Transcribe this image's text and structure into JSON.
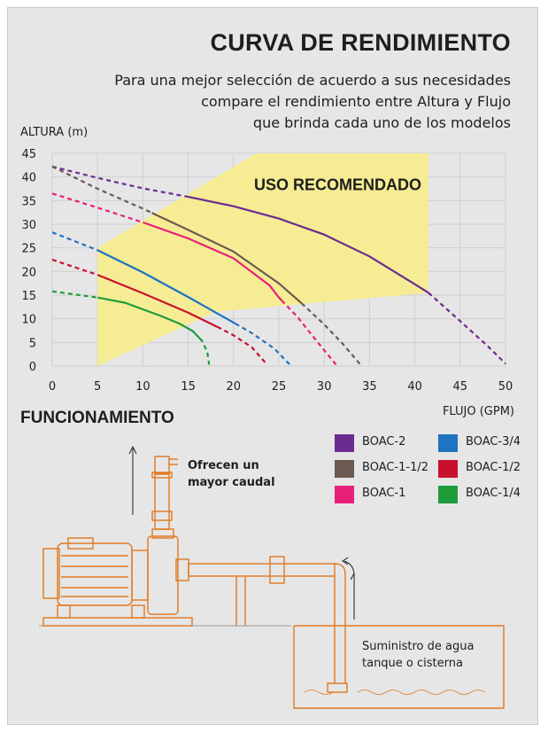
{
  "header": {
    "title": "CURVA DE RENDIMIENTO",
    "subtitle_lines": [
      "Para una mejor selección de acuerdo a sus necesidades",
      "compare el rendimiento entre Altura y Flujo",
      "que brinda cada uno de los modelos"
    ]
  },
  "chart_data": {
    "type": "line",
    "ylabel": "ALTURA (m)",
    "xlabel": "FLUJO (GPM)",
    "xlim": [
      0,
      50
    ],
    "ylim": [
      0,
      45
    ],
    "x_ticks": [
      0,
      5,
      10,
      15,
      20,
      25,
      30,
      35,
      40,
      45,
      50
    ],
    "y_ticks": [
      0,
      5,
      10,
      15,
      20,
      25,
      30,
      35,
      40,
      45
    ],
    "grid": true,
    "recommended_zone": {
      "label": "USO RECOMENDADO",
      "color": "#f7ec8f",
      "polygon": [
        [
          5,
          0
        ],
        [
          5,
          25
        ],
        [
          22.5,
          45
        ],
        [
          41.5,
          45
        ],
        [
          41.5,
          15.5
        ],
        [
          18,
          11.5
        ]
      ]
    },
    "series": [
      {
        "name": "BOAC-2",
        "color": "#6a2c91",
        "points": [
          [
            0,
            42.2
          ],
          [
            5,
            39.8
          ],
          [
            10,
            37.6
          ],
          [
            15,
            35.8
          ],
          [
            20,
            33.8
          ],
          [
            25,
            31.2
          ],
          [
            30,
            27.8
          ],
          [
            35,
            23.2
          ],
          [
            40,
            17.3
          ],
          [
            41.5,
            15.5
          ],
          [
            45,
            9.5
          ],
          [
            48,
            4.3
          ],
          [
            50,
            0.5
          ]
        ],
        "solid_range": [
          15,
          41.5
        ]
      },
      {
        "name": "BOAC-1-1/2",
        "color": "#6b5a50",
        "points": [
          [
            0,
            42.2
          ],
          [
            5,
            37.5
          ],
          [
            10,
            33.3
          ],
          [
            15,
            28.8
          ],
          [
            20,
            24.2
          ],
          [
            25,
            17.5
          ],
          [
            27.5,
            13.3
          ],
          [
            30,
            8.8
          ],
          [
            32,
            4.8
          ],
          [
            34,
            0.3
          ]
        ],
        "solid_range": [
          11,
          27.5
        ]
      },
      {
        "name": "BOAC-1",
        "color": "#e8207a",
        "points": [
          [
            0,
            36.5
          ],
          [
            5,
            33.5
          ],
          [
            10,
            30.4
          ],
          [
            15,
            27.0
          ],
          [
            20,
            22.8
          ],
          [
            24,
            17.0
          ],
          [
            25,
            14.5
          ],
          [
            27,
            10.5
          ],
          [
            29.3,
            5.0
          ],
          [
            31.3,
            0.3
          ]
        ],
        "solid_range": [
          10,
          25.3
        ]
      },
      {
        "name": "BOAC-3/4",
        "color": "#1f73c0",
        "points": [
          [
            0,
            28.3
          ],
          [
            5,
            24.5
          ],
          [
            10,
            19.8
          ],
          [
            15,
            14.6
          ],
          [
            20,
            9.2
          ],
          [
            22,
            7.0
          ],
          [
            24.5,
            3.7
          ],
          [
            26.2,
            0.3
          ]
        ],
        "solid_range": [
          5,
          20.2
        ]
      },
      {
        "name": "BOAC-1/2",
        "color": "#c8102e",
        "points": [
          [
            0,
            22.5
          ],
          [
            5,
            19.3
          ],
          [
            10,
            15.4
          ],
          [
            15,
            11.3
          ],
          [
            18,
            8.5
          ],
          [
            20,
            6.5
          ],
          [
            22,
            4.0
          ],
          [
            23.7,
            0.3
          ]
        ],
        "solid_range": [
          5,
          18.2
        ]
      },
      {
        "name": "BOAC-1/4",
        "color": "#1e9c3a",
        "points": [
          [
            0,
            15.8
          ],
          [
            5,
            14.5
          ],
          [
            8,
            13.4
          ],
          [
            10,
            12.0
          ],
          [
            12,
            10.6
          ],
          [
            14,
            9.0
          ],
          [
            15.5,
            7.4
          ],
          [
            16.5,
            5.4
          ],
          [
            17.1,
            3.0
          ],
          [
            17.3,
            0.3
          ]
        ],
        "solid_range": [
          5,
          16.3
        ]
      }
    ]
  },
  "section": {
    "title": "FUNCIONAMIENTO",
    "note_lines": [
      "Ofrecen un",
      "mayor caudal"
    ],
    "supply_lines": [
      "Suministro de agua",
      "tanque o cisterna"
    ]
  },
  "diagram": {
    "color": "#e07820"
  }
}
